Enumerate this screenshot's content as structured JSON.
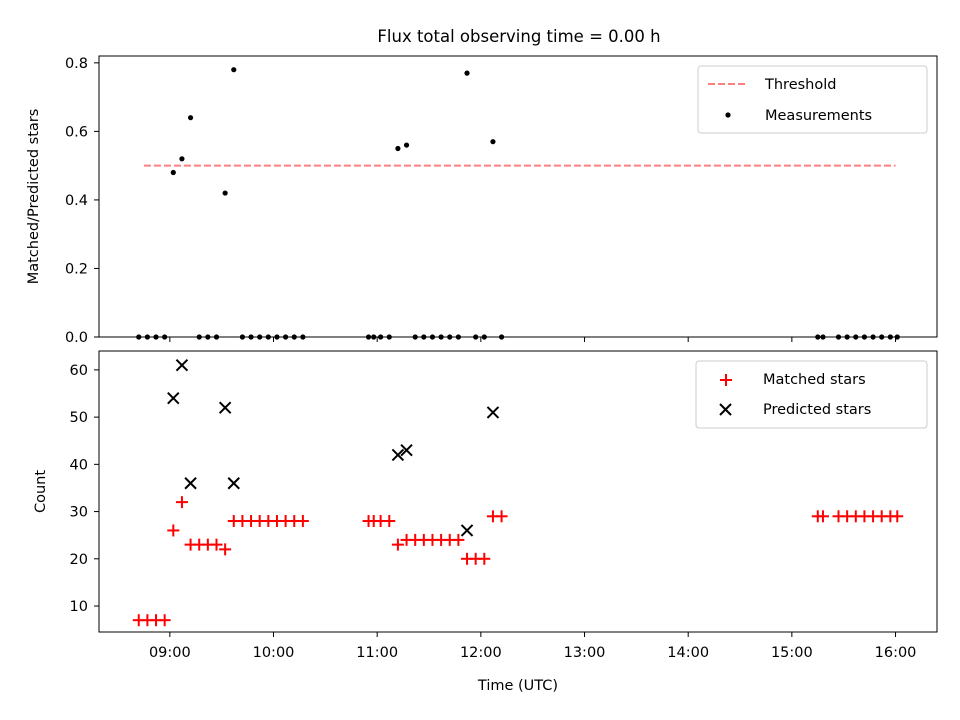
{
  "title": "Flux total observing time = 0.00 h",
  "colors": {
    "threshold": "#ff7f7f",
    "measurement": "#000000",
    "matched": "#ff0000",
    "predicted": "#000000"
  },
  "chart_data": [
    {
      "type": "scatter",
      "title": "Flux total observing time = 0.00 h",
      "ylabel": "Matched/Predicted stars",
      "xlabel": "",
      "xlim": [
        "08:19",
        "16:24"
      ],
      "ylim": [
        0,
        0.82
      ],
      "yticks": [
        "0.0",
        "0.2",
        "0.4",
        "0.6",
        "0.8"
      ],
      "legend_position": "top-right",
      "legend": [
        "Threshold",
        "Measurements"
      ],
      "threshold": {
        "name": "Threshold",
        "y": 0.5,
        "x_start": "08:45",
        "x_end": "16:00",
        "style": "dashed"
      },
      "series": [
        {
          "name": "Measurements",
          "x": [
            "08:42",
            "08:47",
            "08:52",
            "08:57",
            "09:02",
            "09:07",
            "09:12",
            "09:17",
            "09:22",
            "09:27",
            "09:32",
            "09:37",
            "09:42",
            "09:47",
            "09:52",
            "09:57",
            "10:02",
            "10:07",
            "10:12",
            "10:17",
            "10:55",
            "10:58",
            "11:02",
            "11:07",
            "11:12",
            "11:17",
            "11:22",
            "11:27",
            "11:32",
            "11:37",
            "11:42",
            "11:47",
            "11:52",
            "11:57",
            "12:02",
            "12:07",
            "12:12",
            "15:15",
            "15:18",
            "15:27",
            "15:32",
            "15:37",
            "15:42",
            "15:47",
            "15:52",
            "15:57",
            "16:01"
          ],
          "y": [
            0,
            0,
            0,
            0,
            0.48,
            0.52,
            0.64,
            0,
            0,
            0,
            0.42,
            0.78,
            0,
            0,
            0,
            0,
            0,
            0,
            0,
            0,
            0,
            0,
            0,
            0,
            0.55,
            0.56,
            0,
            0,
            0,
            0,
            0,
            0,
            0.77,
            0,
            0,
            0.57,
            0,
            0,
            0,
            0,
            0,
            0,
            0,
            0,
            0,
            0,
            0
          ]
        }
      ]
    },
    {
      "type": "scatter",
      "ylabel": "Count",
      "xlabel": "Time (UTC)",
      "xlim": [
        "08:19",
        "16:24"
      ],
      "ylim": [
        4.5,
        64
      ],
      "yticks": [
        "10",
        "20",
        "30",
        "40",
        "50",
        "60"
      ],
      "xticks": [
        "09:00",
        "10:00",
        "11:00",
        "12:00",
        "13:00",
        "14:00",
        "15:00",
        "16:00"
      ],
      "legend_position": "top-right",
      "legend": [
        "Matched stars",
        "Predicted stars"
      ],
      "series": [
        {
          "name": "Matched stars",
          "x": [
            "08:42",
            "08:47",
            "08:52",
            "08:57",
            "09:02",
            "09:07",
            "09:12",
            "09:17",
            "09:22",
            "09:27",
            "09:32",
            "09:37",
            "09:42",
            "09:47",
            "09:52",
            "09:57",
            "10:02",
            "10:07",
            "10:12",
            "10:17",
            "10:55",
            "10:58",
            "11:02",
            "11:07",
            "11:12",
            "11:17",
            "11:22",
            "11:27",
            "11:32",
            "11:37",
            "11:42",
            "11:47",
            "11:52",
            "11:57",
            "12:02",
            "12:07",
            "12:12",
            "15:15",
            "15:18",
            "15:27",
            "15:32",
            "15:37",
            "15:42",
            "15:47",
            "15:52",
            "15:57",
            "16:01"
          ],
          "y": [
            7,
            7,
            7,
            7,
            26,
            32,
            23,
            23,
            23,
            23,
            22,
            28,
            28,
            28,
            28,
            28,
            28,
            28,
            28,
            28,
            28,
            28,
            28,
            28,
            23,
            24,
            24,
            24,
            24,
            24,
            24,
            24,
            20,
            20,
            20,
            29,
            29,
            29,
            29,
            29,
            29,
            29,
            29,
            29,
            29,
            29,
            29
          ]
        },
        {
          "name": "Predicted stars",
          "x": [
            "09:02",
            "09:07",
            "09:12",
            "09:32",
            "09:37",
            "11:12",
            "11:17",
            "11:52",
            "12:07"
          ],
          "y": [
            54,
            61,
            36,
            52,
            36,
            42,
            43,
            26,
            51
          ]
        }
      ]
    }
  ]
}
